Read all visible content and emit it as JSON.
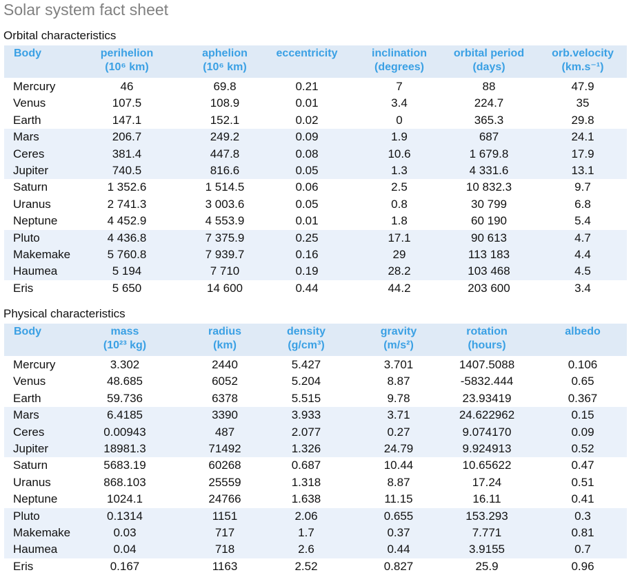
{
  "page": {
    "title": "Solar system fact sheet"
  },
  "orbital": {
    "title": "Orbital characteristics",
    "headers": [
      {
        "l1": "Body",
        "l2": ""
      },
      {
        "l1": "perihelion",
        "l2": "(10⁶ km)"
      },
      {
        "l1": "aphelion",
        "l2": "(10⁶ km)"
      },
      {
        "l1": "eccentricity",
        "l2": ""
      },
      {
        "l1": "inclination",
        "l2": "(degrees)"
      },
      {
        "l1": "orbital period",
        "l2": "(days)"
      },
      {
        "l1": "orb.velocity",
        "l2": "(km.s⁻¹)"
      }
    ],
    "rows": [
      [
        "Mercury",
        "46",
        "69.8",
        "0.21",
        "7",
        "88",
        "47.9"
      ],
      [
        "Venus",
        "107.5",
        "108.9",
        "0.01",
        "3.4",
        "224.7",
        "35"
      ],
      [
        "Earth",
        "147.1",
        "152.1",
        "0.02",
        "0",
        "365.3",
        "29.8"
      ],
      [
        "Mars",
        "206.7",
        "249.2",
        "0.09",
        "1.9",
        "687",
        "24.1"
      ],
      [
        "Ceres",
        "381.4",
        "447.8",
        "0.08",
        "10.6",
        "1 679.8",
        "17.9"
      ],
      [
        "Jupiter",
        "740.5",
        "816.6",
        "0.05",
        "1.3",
        "4 331.6",
        "13.1"
      ],
      [
        "Saturn",
        "1 352.6",
        "1 514.5",
        "0.06",
        "2.5",
        "10 832.3",
        "9.7"
      ],
      [
        "Uranus",
        "2 741.3",
        "3 003.6",
        "0.05",
        "0.8",
        "30 799",
        "6.8"
      ],
      [
        "Neptune",
        "4 452.9",
        "4 553.9",
        "0.01",
        "1.8",
        "60 190",
        "5.4"
      ],
      [
        "Pluto",
        "4 436.8",
        "7 375.9",
        "0.25",
        "17.1",
        "90 613",
        "4.7"
      ],
      [
        "Makemake",
        "5 760.8",
        "7 939.7",
        "0.16",
        "29",
        "113 183",
        "4.4"
      ],
      [
        "Haumea",
        "5 194",
        "7 710",
        "0.19",
        "28.2",
        "103 468",
        "4.5"
      ],
      [
        "Eris",
        "5 650",
        "14 600",
        "0.44",
        "44.2",
        "203 600",
        "3.4"
      ]
    ]
  },
  "physical": {
    "title": "Physical characteristics",
    "headers": [
      {
        "l1": "Body",
        "l2": ""
      },
      {
        "l1": "mass",
        "l2": "(10²³ kg)"
      },
      {
        "l1": "radius",
        "l2": "(km)"
      },
      {
        "l1": "density",
        "l2": "(g/cm³)"
      },
      {
        "l1": "gravity",
        "l2": "(m/s²)"
      },
      {
        "l1": "rotation",
        "l2": "(hours)"
      },
      {
        "l1": "albedo",
        "l2": ""
      }
    ],
    "rows": [
      [
        "Mercury",
        "3.302",
        "2440",
        "5.427",
        "3.701",
        "1407.5088",
        "0.106"
      ],
      [
        "Venus",
        "48.685",
        "6052",
        "5.204",
        "8.87",
        "-5832.444",
        "0.65"
      ],
      [
        "Earth",
        "59.736",
        "6378",
        "5.515",
        "9.78",
        "23.93419",
        "0.367"
      ],
      [
        "Mars",
        "6.4185",
        "3390",
        "3.933",
        "3.71",
        "24.622962",
        "0.15"
      ],
      [
        "Ceres",
        "0.00943",
        "487",
        "2.077",
        "0.27",
        "9.074170",
        "0.09"
      ],
      [
        "Jupiter",
        "18981.3",
        "71492",
        "1.326",
        "24.79",
        "9.924913",
        "0.52"
      ],
      [
        "Saturn",
        "5683.19",
        "60268",
        "0.687",
        "10.44",
        "10.65622",
        "0.47"
      ],
      [
        "Uranus",
        "868.103",
        "25559",
        "1.318",
        "8.87",
        "17.24",
        "0.51"
      ],
      [
        "Neptune",
        "1024.1",
        "24766",
        "1.638",
        "11.15",
        "16.11",
        "0.41"
      ],
      [
        "Pluto",
        "0.1314",
        "1151",
        "2.06",
        "0.655",
        "153.293",
        "0.3"
      ],
      [
        "Makemake",
        "0.03",
        "717",
        "1.7",
        "0.37",
        "7.771",
        "0.81"
      ],
      [
        "Haumea",
        "0.04",
        "718",
        "2.6",
        "0.44",
        "3.9155",
        "0.7"
      ],
      [
        "Eris",
        "0.167",
        "1163",
        "2.52",
        "0.827",
        "25.9",
        "0.96"
      ]
    ]
  }
}
